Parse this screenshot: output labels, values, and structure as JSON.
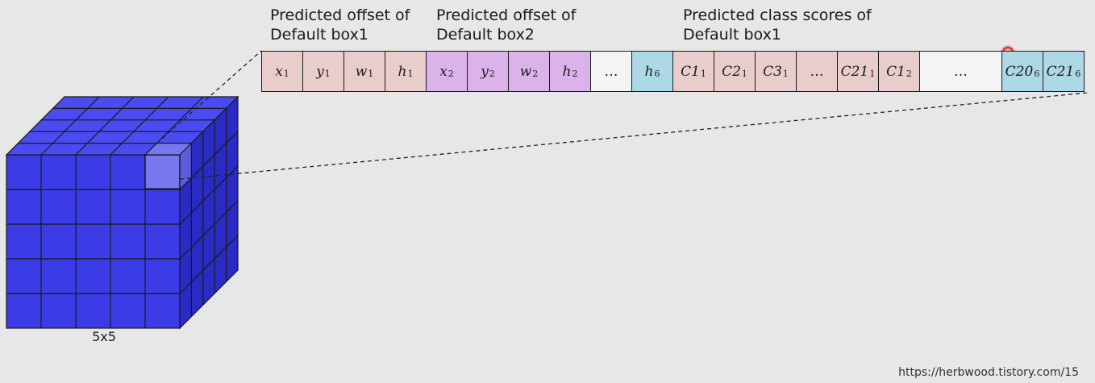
{
  "labels": {
    "offset_box1": [
      "Predicted offset of",
      "Default box1"
    ],
    "offset_box2": [
      "Predicted offset of",
      "Default box2"
    ],
    "class_box1": [
      "Predicted class scores of",
      "Default box1"
    ]
  },
  "cells": [
    {
      "main": "x",
      "sub": "1",
      "color": "#e9cdcd"
    },
    {
      "main": "y",
      "sub": "1",
      "color": "#e9cdcd"
    },
    {
      "main": "w",
      "sub": "1",
      "color": "#e9cdcd"
    },
    {
      "main": "h",
      "sub": "1",
      "color": "#e9cdcd"
    },
    {
      "main": "x",
      "sub": "2",
      "color": "#dbb2ea"
    },
    {
      "main": "y",
      "sub": "2",
      "color": "#dbb2ea"
    },
    {
      "main": "w",
      "sub": "2",
      "color": "#dbb2ea"
    },
    {
      "main": "h",
      "sub": "2",
      "color": "#dbb2ea"
    },
    {
      "main": "…",
      "sub": "",
      "color": "#f4f4f4"
    },
    {
      "main": "h",
      "sub": "6",
      "color": "#add8e6"
    },
    {
      "main": "C1",
      "sub": "1",
      "color": "#e9cdcd"
    },
    {
      "main": "C2",
      "sub": "1",
      "color": "#e9cdcd"
    },
    {
      "main": "C3",
      "sub": "1",
      "color": "#e9cdcd"
    },
    {
      "main": "…",
      "sub": "",
      "color": "#e9cdcd"
    },
    {
      "main": "C21",
      "sub": "1",
      "color": "#e9cdcd"
    },
    {
      "main": "C1",
      "sub": "2",
      "color": "#e9cdcd"
    },
    {
      "main": "…",
      "sub": "",
      "color": "#f4f4f4"
    },
    {
      "main": "C20",
      "sub": "6",
      "color": "#add8e6"
    },
    {
      "main": "C21",
      "sub": "6",
      "color": "#add8e6"
    }
  ],
  "cube": {
    "label": "5x5",
    "grid": 5,
    "front_color": "#3b3ce6",
    "top_color": "#4a4bf0",
    "side_color": "#2a2bc4",
    "highlight_color": "#7878ee"
  },
  "footer": {
    "url": "https://herbwood.tistory.com/15"
  },
  "cursor_color": "#e02020"
}
